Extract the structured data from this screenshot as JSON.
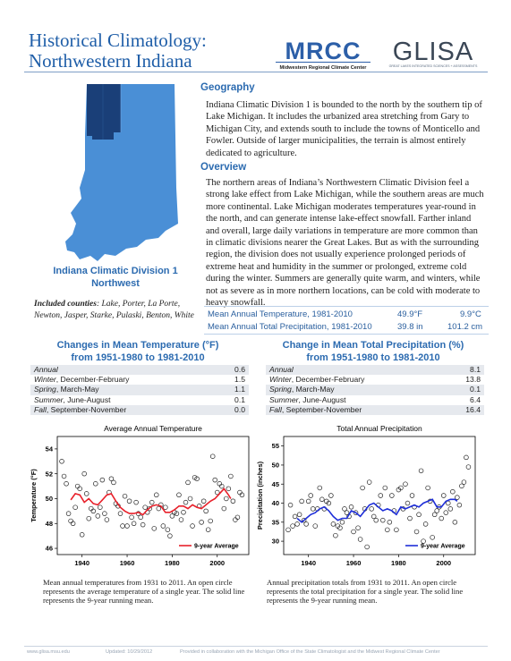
{
  "header": {
    "title_line1": "Historical Climatology:",
    "title_line2": "Northwestern Indiana",
    "logo_mrcc_text": "MRCC",
    "logo_mrcc_subtitle": "Midwestern Regional Climate Center",
    "logo_glisa_text": "GLISA",
    "logo_glisa_subtitle": "GREAT LAKES INTEGRATED SCIENCES + ASSESSMENTS"
  },
  "colors": {
    "title_blue": "#1f5ea8",
    "map_state": "#4a8fd6",
    "map_division": "#1a3f78",
    "temp_line": "#e8212b",
    "precip_line": "#1f2fd8"
  },
  "map": {
    "caption_line1": "Indiana Climatic Division 1",
    "caption_line2": "Northwest"
  },
  "counties": {
    "label": "Included counties",
    "list": ": Lake, Porter, La Porte, Newton, Jasper, Starke, Pulaski, Benton, White"
  },
  "geography": {
    "heading": "Geography",
    "text": "Indiana Climatic Division 1 is bounded to the north by the southern tip of Lake Michigan. It includes the urbanized area stretching from Gary to Michigan City, and extends south to include the towns of Monticello and Fowler. Outside of larger municipalities, the terrain is almost entirely dedicated to agriculture."
  },
  "overview": {
    "heading": "Overview",
    "text": "The northern areas of Indiana’s Northwestern Climatic Division feel a strong lake effect from Lake Michigan, while the southern areas are much more continental. Lake Michigan moderates temperatures year-round in the north, and can generate intense lake-effect snowfall. Farther inland and overall, large daily variations in temperature are more common than in climatic divisions nearer the Great Lakes. But as with the surrounding region, the division does not usually experience prolonged periods of extreme heat and humidity in the summer or prolonged, extreme cold during the winter. Summers are generally quite warm, and winters, while not as severe as in more northern locations, can be cold with moderate to heavy snowfall."
  },
  "means": [
    {
      "label": "Mean Annual Temperature, 1981-2010",
      "v1": "49.9°F",
      "v2": "9.9°C"
    },
    {
      "label": "Mean Annual Total Precipitation, 1981-2010",
      "v1": "39.8 in",
      "v2": "101.2 cm"
    }
  ],
  "temp_change": {
    "title_line1": "Changes in Mean Temperature (°F)",
    "title_line2": "from 1951-1980 to 1981-2010",
    "rows": [
      {
        "season": "Annual",
        "months": "",
        "value": "0.6"
      },
      {
        "season": "Winter",
        "months": ", December-February",
        "value": "1.5"
      },
      {
        "season": "Spring",
        "months": ", March-May",
        "value": "1.1"
      },
      {
        "season": "Summer",
        "months": ", June-August",
        "value": "0.1"
      },
      {
        "season": "Fall",
        "months": ", September-November",
        "value": "0.0"
      }
    ]
  },
  "precip_change": {
    "title_line1": "Change in Mean Total Precipitation (%)",
    "title_line2": "from 1951-1980 to 1981-2010",
    "rows": [
      {
        "season": "Annual",
        "months": "",
        "value": "8.1"
      },
      {
        "season": "Winter",
        "months": ", December-February",
        "value": "13.8"
      },
      {
        "season": "Spring",
        "months": ", March-May",
        "value": "0.1"
      },
      {
        "season": "Summer",
        "months": ", June-August",
        "value": "6.4"
      },
      {
        "season": "Fall",
        "months": ", September-November",
        "value": "16.4"
      }
    ]
  },
  "chart_data": [
    {
      "type": "scatter",
      "title": "Average Annual Temperature",
      "ylabel": "Temperature (°F)",
      "xlabel": "",
      "xlim": [
        1929,
        2014
      ],
      "ylim": [
        45.5,
        55
      ],
      "xticks": [
        1940,
        1960,
        1980,
        2000
      ],
      "yticks": [
        46,
        48,
        50,
        52,
        54
      ],
      "grid": false,
      "legend": "bottom-right",
      "series": [
        {
          "name": "9-year Average",
          "kind": "line",
          "color": "#e8212b",
          "x": [
            1935,
            1937,
            1939,
            1941,
            1943,
            1945,
            1947,
            1949,
            1951,
            1953,
            1955,
            1957,
            1959,
            1961,
            1963,
            1965,
            1967,
            1969,
            1971,
            1973,
            1975,
            1977,
            1979,
            1981,
            1983,
            1985,
            1987,
            1989,
            1991,
            1993,
            1995,
            1997,
            1999,
            2001,
            2003,
            2005,
            2006
          ],
          "y": [
            49.9,
            50.4,
            50.3,
            49.7,
            50.0,
            49.6,
            49.5,
            49.9,
            50.3,
            50.4,
            49.8,
            49.3,
            49.0,
            48.8,
            48.8,
            48.9,
            48.7,
            49.1,
            49.4,
            49.5,
            49.4,
            48.9,
            48.9,
            49.1,
            49.4,
            49.4,
            49.2,
            49.5,
            49.3,
            49.2,
            49.5,
            49.8,
            50.0,
            50.4,
            50.8,
            50.3,
            50.0
          ]
        },
        {
          "name": "",
          "kind": "points",
          "x": [
            1931,
            1932,
            1933,
            1934,
            1935,
            1936,
            1937,
            1938,
            1939,
            1940,
            1941,
            1942,
            1943,
            1944,
            1945,
            1946,
            1947,
            1948,
            1949,
            1950,
            1951,
            1952,
            1953,
            1954,
            1955,
            1956,
            1957,
            1958,
            1959,
            1960,
            1961,
            1962,
            1963,
            1964,
            1965,
            1966,
            1967,
            1968,
            1969,
            1970,
            1971,
            1972,
            1973,
            1974,
            1975,
            1976,
            1977,
            1978,
            1979,
            1980,
            1981,
            1982,
            1983,
            1984,
            1985,
            1986,
            1987,
            1988,
            1989,
            1990,
            1991,
            1992,
            1993,
            1994,
            1995,
            1996,
            1997,
            1998,
            1999,
            2000,
            2001,
            2002,
            2003,
            2004,
            2005,
            2006,
            2007,
            2008,
            2009,
            2010,
            2011
          ],
          "y": [
            53.0,
            51.8,
            51.2,
            48.8,
            48.2,
            48.0,
            49.3,
            51.0,
            50.8,
            47.1,
            52.0,
            50.4,
            48.4,
            49.2,
            49.0,
            51.2,
            48.6,
            49.3,
            51.5,
            48.8,
            48.3,
            50.5,
            51.6,
            51.3,
            49.6,
            49.4,
            48.8,
            47.8,
            50.2,
            47.8,
            49.8,
            48.5,
            48.0,
            49.7,
            48.8,
            48.5,
            47.9,
            49.3,
            48.9,
            49.2,
            49.7,
            47.6,
            50.3,
            49.2,
            49.5,
            47.8,
            49.3,
            47.5,
            47.0,
            48.6,
            48.9,
            48.8,
            50.3,
            48.3,
            48.9,
            49.7,
            51.3,
            50.0,
            47.8,
            51.7,
            51.6,
            49.4,
            48.1,
            49.8,
            49.0,
            47.5,
            48.2,
            53.4,
            51.5,
            50.5,
            51.2,
            51.0,
            49.2,
            50.0,
            50.8,
            51.8,
            49.8,
            48.3,
            48.5,
            50.5,
            50.3
          ]
        }
      ]
    },
    {
      "type": "scatter",
      "title": "Total Annual Precipitation",
      "ylabel": "Precipitation (inches)",
      "xlabel": "",
      "xlim": [
        1929,
        2014
      ],
      "ylim": [
        26.5,
        57.5
      ],
      "xticks": [
        1940,
        1960,
        1980,
        2000
      ],
      "yticks": [
        30,
        35,
        40,
        45,
        50,
        55
      ],
      "grid": false,
      "legend": "bottom-right",
      "series": [
        {
          "name": "9-year Average",
          "kind": "line",
          "color": "#1f2fd8",
          "x": [
            1935,
            1937,
            1939,
            1941,
            1943,
            1945,
            1947,
            1949,
            1951,
            1953,
            1955,
            1957,
            1959,
            1961,
            1963,
            1965,
            1967,
            1969,
            1971,
            1973,
            1975,
            1977,
            1979,
            1981,
            1983,
            1985,
            1987,
            1989,
            1991,
            1993,
            1995,
            1997,
            1999,
            2001,
            2003,
            2005,
            2006
          ],
          "y": [
            36.0,
            35.0,
            36.0,
            37.0,
            37.5,
            38.5,
            39.0,
            38.0,
            36.5,
            35.5,
            36.0,
            36.0,
            38.0,
            37.5,
            36.5,
            38.0,
            39.5,
            40.0,
            39.0,
            38.0,
            38.5,
            38.0,
            37.0,
            39.0,
            38.5,
            39.0,
            39.5,
            39.0,
            40.0,
            40.5,
            41.0,
            39.0,
            39.0,
            40.5,
            41.0,
            41.0,
            40.5
          ]
        },
        {
          "name": "",
          "kind": "points",
          "x": [
            1931,
            1932,
            1933,
            1934,
            1935,
            1936,
            1937,
            1938,
            1939,
            1940,
            1941,
            1942,
            1943,
            1944,
            1945,
            1946,
            1947,
            1948,
            1949,
            1950,
            1951,
            1952,
            1953,
            1954,
            1955,
            1956,
            1957,
            1958,
            1959,
            1960,
            1961,
            1962,
            1963,
            1964,
            1965,
            1966,
            1967,
            1968,
            1969,
            1970,
            1971,
            1972,
            1973,
            1974,
            1975,
            1976,
            1977,
            1978,
            1979,
            1980,
            1981,
            1982,
            1983,
            1984,
            1985,
            1986,
            1987,
            1988,
            1989,
            1990,
            1991,
            1992,
            1993,
            1994,
            1995,
            1996,
            1997,
            1998,
            1999,
            2000,
            2001,
            2002,
            2003,
            2004,
            2005,
            2006,
            2007,
            2008,
            2009,
            2010,
            2011
          ],
          "y": [
            33.0,
            39.5,
            34.0,
            36.5,
            34.5,
            37.0,
            40.5,
            35.5,
            34.5,
            40.5,
            42.0,
            38.5,
            34.0,
            38.5,
            44.0,
            41.0,
            38.5,
            40.5,
            40.0,
            42.0,
            34.5,
            31.5,
            34.0,
            33.5,
            35.0,
            38.5,
            37.5,
            36.5,
            39.0,
            32.5,
            37.5,
            33.5,
            30.5,
            44.0,
            38.5,
            28.5,
            45.5,
            38.5,
            36.5,
            35.5,
            39.5,
            42.0,
            35.5,
            44.0,
            33.0,
            35.0,
            42.0,
            38.0,
            33.0,
            43.5,
            44.0,
            38.5,
            45.0,
            40.0,
            36.0,
            42.0,
            39.0,
            32.5,
            37.0,
            48.5,
            30.0,
            34.5,
            44.0,
            40.5,
            31.0,
            37.0,
            38.0,
            39.0,
            36.0,
            42.0,
            37.5,
            40.0,
            38.5,
            43.0,
            35.0,
            41.5,
            39.5,
            44.5,
            45.5,
            52.0,
            49.5
          ]
        }
      ]
    }
  ],
  "captions": {
    "temp": "Mean annual temperatures from 1931 to 2011. An open circle represents the average temperature of a single year. The solid line represents the 9-year running mean.",
    "precip": "Annual precipitation totals from 1931 to 2011. An open circle represents the total precipitation for a single year. The solid line represents the 9-year running mean."
  },
  "footer": {
    "site": "www.glisa.msu.edu",
    "updated": "Updated: 10/29/2012",
    "credit": "Provided in collaboration with the Michigan Office of the State Climatologist and the Midwest Regional Climate Center"
  }
}
